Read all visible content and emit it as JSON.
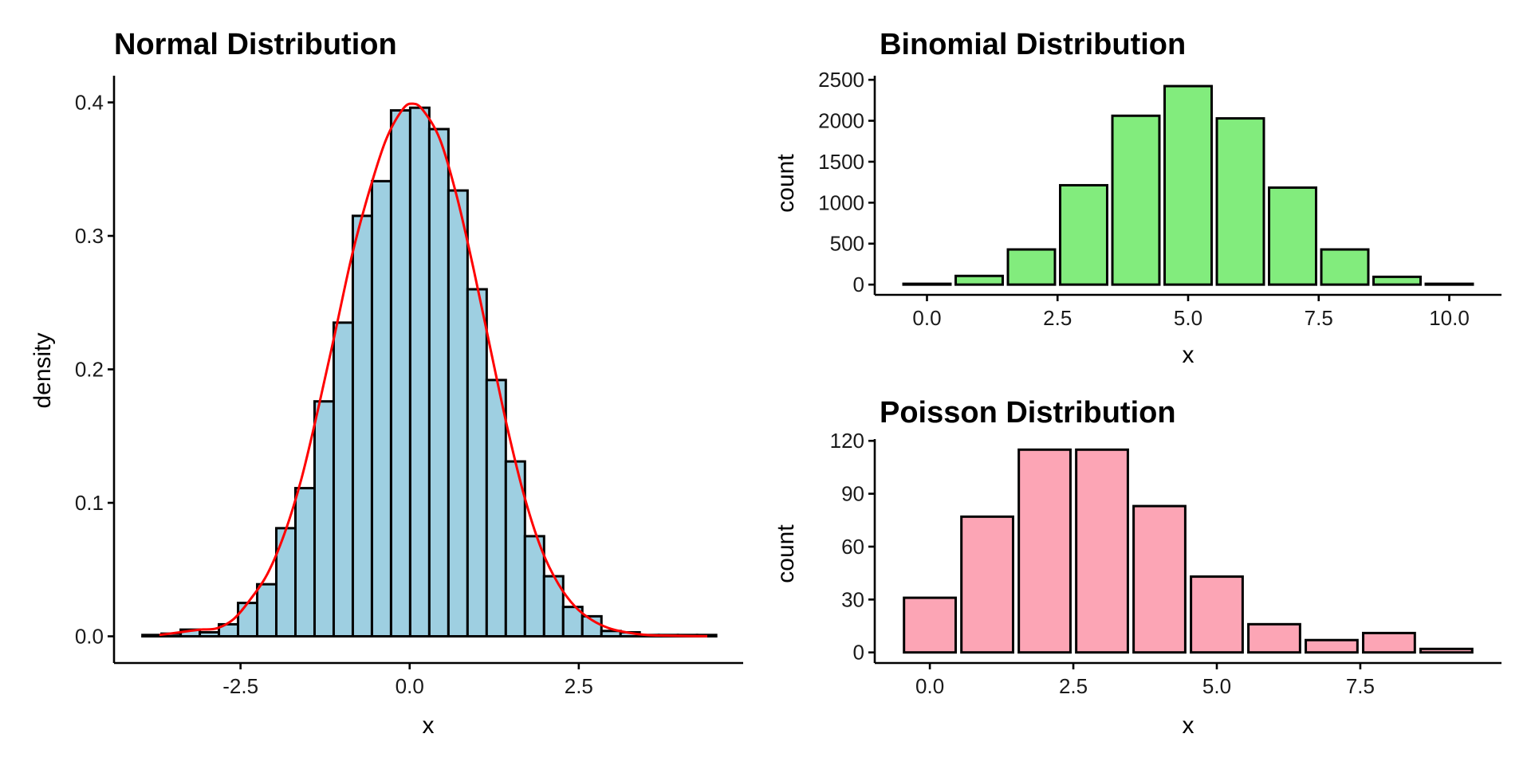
{
  "chart_data": [
    {
      "id": "normal",
      "type": "bar",
      "subtype": "histogram-with-density",
      "title": "Normal Distribution",
      "xlabel": "x",
      "ylabel": "density",
      "xlim": [
        -4.37,
        4.93
      ],
      "ylim": [
        -0.02,
        0.42
      ],
      "xticks": [
        -2.5,
        0.0,
        2.5
      ],
      "xtick_labels": [
        "-2.5",
        "0.0",
        "2.5"
      ],
      "yticks": [
        0.0,
        0.1,
        0.2,
        0.3,
        0.4
      ],
      "ytick_labels": [
        "0.0",
        "0.1",
        "0.2",
        "0.3",
        "0.4"
      ],
      "grid": false,
      "bar_fill": "#9ecfe1",
      "bar_edge": "#000000",
      "density_color": "#ff0000",
      "bin_start": -3.95,
      "bin_width": 0.2827,
      "values": [
        0.001,
        0.002,
        0.005,
        0.003,
        0.009,
        0.025,
        0.039,
        0.081,
        0.111,
        0.176,
        0.235,
        0.315,
        0.341,
        0.394,
        0.396,
        0.38,
        0.334,
        0.26,
        0.192,
        0.131,
        0.075,
        0.045,
        0.022,
        0.015,
        0.004,
        0.003,
        0.001,
        0.001,
        0.001,
        0.001
      ],
      "density_curve": {
        "x": [
          -3.7,
          -3.4,
          -3.1,
          -2.85,
          -2.6,
          -2.35,
          -2.1,
          -1.85,
          -1.6,
          -1.35,
          -1.1,
          -0.85,
          -0.6,
          -0.35,
          -0.1,
          0.05,
          0.2,
          0.45,
          0.7,
          0.95,
          1.2,
          1.45,
          1.7,
          1.95,
          2.2,
          2.45,
          2.7,
          2.95,
          3.2,
          3.5,
          3.8,
          4.1,
          4.4
        ],
        "y": [
          0.001,
          0.003,
          0.005,
          0.006,
          0.013,
          0.028,
          0.047,
          0.077,
          0.118,
          0.171,
          0.228,
          0.286,
          0.333,
          0.372,
          0.395,
          0.399,
          0.394,
          0.372,
          0.329,
          0.274,
          0.214,
          0.155,
          0.104,
          0.065,
          0.039,
          0.022,
          0.012,
          0.006,
          0.003,
          0.001,
          0.0005,
          0.0002,
          0.0001
        ]
      }
    },
    {
      "id": "binomial",
      "type": "bar",
      "title": "Binomial Distribution",
      "xlabel": "x",
      "ylabel": "count",
      "xlim": [
        -1.0,
        11.0
      ],
      "ylim": [
        -125,
        2550
      ],
      "xticks": [
        0,
        2.5,
        5,
        7.5,
        10
      ],
      "xtick_labels": [
        "0.0",
        "2.5",
        "5.0",
        "7.5",
        "10.0"
      ],
      "yticks": [
        0,
        500,
        1000,
        1500,
        2000,
        2500
      ],
      "ytick_labels": [
        "0",
        "500",
        "1000",
        "1500",
        "2000",
        "2500"
      ],
      "grid": false,
      "bar_fill": "#82ec7d",
      "bar_edge": "#000000",
      "categories": [
        0,
        1,
        2,
        3,
        4,
        5,
        6,
        7,
        8,
        9,
        10
      ],
      "values": [
        10,
        106,
        429,
        1213,
        2061,
        2423,
        2029,
        1184,
        429,
        95,
        10
      ]
    },
    {
      "id": "poisson",
      "type": "bar",
      "title": "Poisson Distribution",
      "xlabel": "x",
      "ylabel": "count",
      "xlim": [
        -0.96,
        9.96
      ],
      "ylim": [
        -6,
        121
      ],
      "xticks": [
        0,
        2.5,
        5,
        7.5
      ],
      "xtick_labels": [
        "0.0",
        "2.5",
        "5.0",
        "7.5"
      ],
      "yticks": [
        0,
        30,
        60,
        90,
        120
      ],
      "ytick_labels": [
        "0",
        "30",
        "60",
        "90",
        "120"
      ],
      "grid": false,
      "bar_fill": "#fca5b5",
      "bar_edge": "#000000",
      "categories": [
        0,
        1,
        2,
        3,
        4,
        5,
        6,
        7,
        8,
        9
      ],
      "values": [
        31,
        77,
        115,
        115,
        83,
        43,
        16,
        7,
        11,
        2
      ]
    }
  ]
}
